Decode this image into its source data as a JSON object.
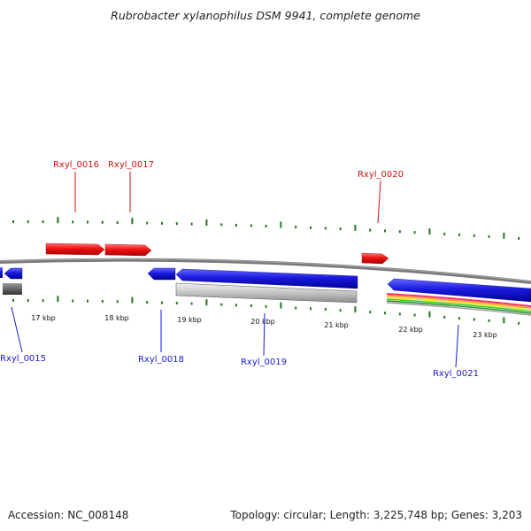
{
  "title": "Rubrobacter xylanophilus DSM 9941, complete genome",
  "footer": {
    "accession": "Accession: NC_008148",
    "summary": "Topology: circular; Length: 3,225,748 bp; Genes: 3,203"
  },
  "colors": {
    "forward_gene": "#ee1111",
    "reverse_gene": "#1a1add",
    "backbone": "#808080",
    "tick": "#227722",
    "feature_gray": "#bbbbbb",
    "feature_dark": "#666666"
  },
  "scale_labels": [
    "17 kbp",
    "18 kbp",
    "19 kbp",
    "20 kbp",
    "21 kbp",
    "22 kbp",
    "23 kbp"
  ],
  "forward_genes": [
    {
      "name": "Rxyl_0016"
    },
    {
      "name": "Rxyl_0017"
    },
    {
      "name": "Rxyl_0020"
    }
  ],
  "reverse_genes": [
    {
      "name": "Rxyl_0015"
    },
    {
      "name": "Rxyl_0018"
    },
    {
      "name": "Rxyl_0019"
    },
    {
      "name": "Rxyl_0021"
    }
  ]
}
